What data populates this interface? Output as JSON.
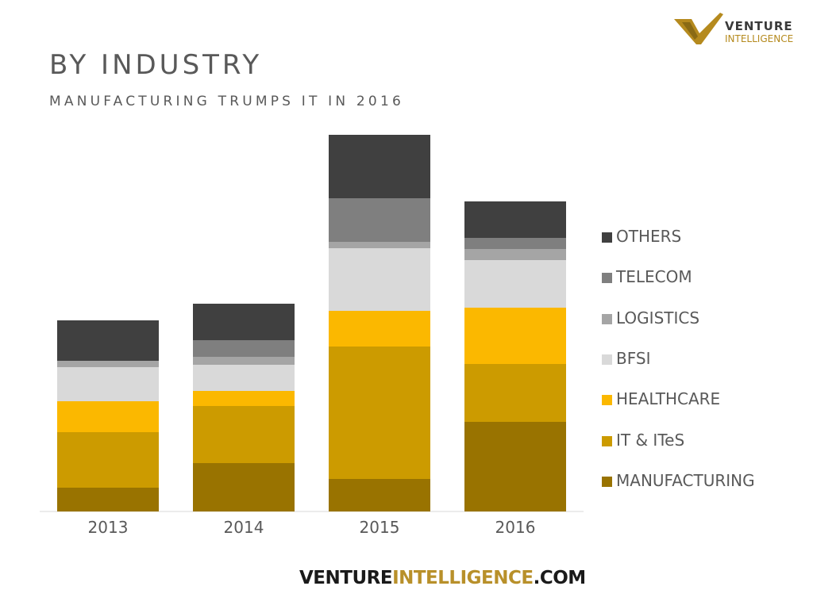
{
  "slide": {
    "title": "BY INDUSTRY",
    "subtitle": "MANUFACTURING TRUMPS IT IN 2016"
  },
  "logo": {
    "word1": "VENTURE",
    "word2": "INTELLIGENCE",
    "mark_icon": "venture-intelligence-v-logo"
  },
  "footer": {
    "part1": "VENTURE",
    "part2": "INTELLIGENCE",
    "part3": ".COM"
  },
  "colors": {
    "MANUFACTURING": "#997300",
    "IT & ITeS": "#cc9b00",
    "HEALTHCARE": "#fbb800",
    "BFSI": "#d9d9d9",
    "LOGISTICS": "#a5a5a5",
    "TELECOM": "#7f7f7f",
    "OTHERS": "#404040"
  },
  "chart_data": {
    "type": "bar",
    "stacked": true,
    "categories": [
      "2013",
      "2014",
      "2015",
      "2016"
    ],
    "series": [
      {
        "name": "MANUFACTURING",
        "values": [
          30,
          61,
          41,
          113
        ]
      },
      {
        "name": "IT & ITeS",
        "values": [
          70,
          72,
          167,
          73
        ]
      },
      {
        "name": "HEALTHCARE",
        "values": [
          39,
          19,
          45,
          71
        ]
      },
      {
        "name": "BFSI",
        "values": [
          43,
          33,
          79,
          60
        ]
      },
      {
        "name": "LOGISTICS",
        "values": [
          8,
          10,
          8,
          14
        ]
      },
      {
        "name": "TELECOM",
        "values": [
          0,
          21,
          55,
          14
        ]
      },
      {
        "name": "OTHERS",
        "values": [
          51,
          46,
          80,
          46
        ]
      }
    ],
    "ylim": [
      0,
      475
    ],
    "grid": false,
    "legend": "right"
  }
}
